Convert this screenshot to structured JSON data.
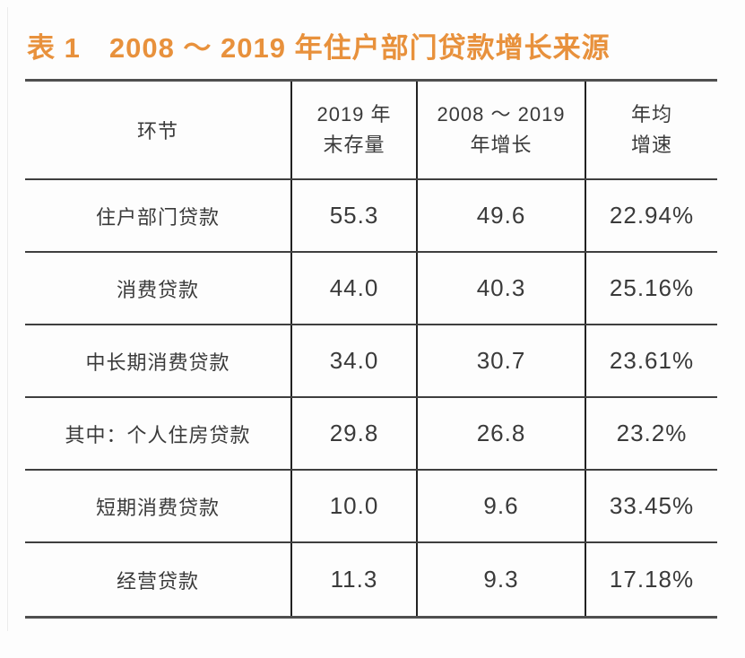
{
  "colors": {
    "title_orange": "#E8913C",
    "text_dark": "#3a3a3a",
    "line_inner_v": "#222222",
    "line_inner_h": "#3f3f3f",
    "line_outer": "#4f4f4f",
    "page_bg": "#fdfdfd"
  },
  "title": "表 1　2008 ～ 2019 年住户部门贷款增长来源",
  "table": {
    "header": {
      "col1": "环节",
      "col2_line1": "2019 年",
      "col2_line2": "末存量",
      "col3_line1": "2008 ～ 2019",
      "col3_line2": "年增长",
      "col4_line1": "年均",
      "col4_line2": "增速"
    },
    "rows": [
      {
        "label": "住户部门贷款",
        "stock_2019": "55.3",
        "growth": "49.6",
        "cagr": "22.94%"
      },
      {
        "label": "消费贷款",
        "stock_2019": "44.0",
        "growth": "40.3",
        "cagr": "25.16%"
      },
      {
        "label": "中长期消费贷款",
        "stock_2019": "34.0",
        "growth": "30.7",
        "cagr": "23.61%"
      },
      {
        "label": "其中：个人住房贷款",
        "stock_2019": "29.8",
        "growth": "26.8",
        "cagr": "23.2%"
      },
      {
        "label": "短期消费贷款",
        "stock_2019": "10.0",
        "growth": "9.6",
        "cagr": "33.45%"
      },
      {
        "label": "经营贷款",
        "stock_2019": "11.3",
        "growth": "9.3",
        "cagr": "17.18%"
      }
    ]
  },
  "chart_data": {
    "type": "table",
    "title": "表 1　2008 ～ 2019 年住户部门贷款增长来源",
    "columns": [
      "环节",
      "2019 年末存量",
      "2008 ～ 2019 年增长",
      "年均增速"
    ],
    "rows": [
      [
        "住户部门贷款",
        55.3,
        49.6,
        "22.94%"
      ],
      [
        "消费贷款",
        44.0,
        40.3,
        "25.16%"
      ],
      [
        "中长期消费贷款",
        34.0,
        30.7,
        "23.61%"
      ],
      [
        "其中：个人住房贷款",
        29.8,
        26.8,
        "23.2%"
      ],
      [
        "短期消费贷款",
        10.0,
        9.6,
        "33.45%"
      ],
      [
        "经营贷款",
        11.3,
        9.3,
        "17.18%"
      ]
    ],
    "layout": {
      "grid": "horizontal rules full width; vertical rules internal only",
      "header_rows": 1,
      "title_color": "#E8913C"
    }
  }
}
